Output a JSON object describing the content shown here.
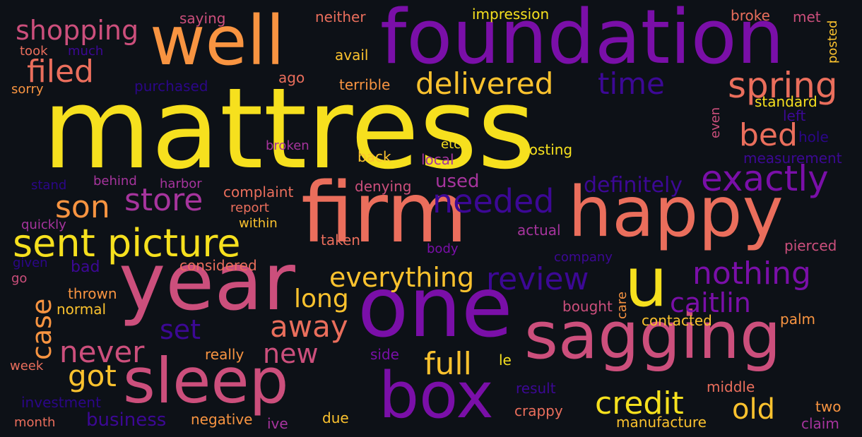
{
  "palette": {
    "background": "#0d1117",
    "yellow": "#f6e01e",
    "gold": "#fbc22e",
    "orange": "#f89441",
    "coral": "#ea6e5c",
    "pink": "#cc4f7c",
    "magenta": "#a6349d",
    "purple": "#7a0fa8",
    "indigo": "#3c0895",
    "dark_indigo": "#2b0688"
  },
  "words": [
    {
      "text": "mattress",
      "color": "#f6e01e"
    },
    {
      "text": "foundation",
      "color": "#7a0fa8"
    },
    {
      "text": "well",
      "color": "#f89441"
    },
    {
      "text": "firm",
      "color": "#ea6e5c"
    },
    {
      "text": "happy",
      "color": "#ea6e5c"
    },
    {
      "text": "year",
      "color": "#cc4f7c"
    },
    {
      "text": "one",
      "color": "#7a0fa8"
    },
    {
      "text": "u",
      "color": "#f6e01e"
    },
    {
      "text": "sagging",
      "color": "#cc4f7c"
    },
    {
      "text": "sleep",
      "color": "#cc4f7c"
    },
    {
      "text": "box",
      "color": "#7a0fa8"
    },
    {
      "text": "sent picture",
      "color": "#f6e01e"
    },
    {
      "text": "shopping",
      "color": "#cc4f7c"
    },
    {
      "text": "filed",
      "color": "#ea6e5c"
    },
    {
      "text": "delivered",
      "color": "#fbc22e"
    },
    {
      "text": "time",
      "color": "#3c0895"
    },
    {
      "text": "spring",
      "color": "#ea6e5c"
    },
    {
      "text": "bed",
      "color": "#ea6e5c"
    },
    {
      "text": "exactly",
      "color": "#7a0fa8"
    },
    {
      "text": "store",
      "color": "#a6349d"
    },
    {
      "text": "son",
      "color": "#f89441"
    },
    {
      "text": "needed",
      "color": "#3c0895"
    },
    {
      "text": "definitely",
      "color": "#3c0895"
    },
    {
      "text": "nothing",
      "color": "#7a0fa8"
    },
    {
      "text": "review",
      "color": "#3c0895"
    },
    {
      "text": "everything",
      "color": "#fbc22e"
    },
    {
      "text": "caitlin",
      "color": "#7a0fa8"
    },
    {
      "text": "case",
      "color": "#f89441"
    },
    {
      "text": "never",
      "color": "#cc4f7c"
    },
    {
      "text": "got",
      "color": "#fbc22e"
    },
    {
      "text": "set",
      "color": "#3c0895"
    },
    {
      "text": "away",
      "color": "#ea6e5c"
    },
    {
      "text": "long",
      "color": "#fbc22e"
    },
    {
      "text": "new",
      "color": "#cc4f7c"
    },
    {
      "text": "full",
      "color": "#fbc22e"
    },
    {
      "text": "credit",
      "color": "#f6e01e"
    },
    {
      "text": "old",
      "color": "#fbc22e"
    },
    {
      "text": "business",
      "color": "#3c0895"
    },
    {
      "text": "bad",
      "color": "#3c0895"
    },
    {
      "text": "used",
      "color": "#a6349d"
    },
    {
      "text": "saying",
      "color": "#cc4f7c"
    },
    {
      "text": "neither",
      "color": "#ea6e5c"
    },
    {
      "text": "impression",
      "color": "#f6e01e"
    },
    {
      "text": "broke",
      "color": "#ea6e5c"
    },
    {
      "text": "met",
      "color": "#cc4f7c"
    },
    {
      "text": "posted",
      "color": "#fbc22e"
    },
    {
      "text": "took",
      "color": "#ea6e5c"
    },
    {
      "text": "much",
      "color": "#3c0895"
    },
    {
      "text": "avail",
      "color": "#fbc22e"
    },
    {
      "text": "sorry",
      "color": "#f89441"
    },
    {
      "text": "purchased",
      "color": "#2b0688"
    },
    {
      "text": "ago",
      "color": "#ea6e5c"
    },
    {
      "text": "terrible",
      "color": "#f89441"
    },
    {
      "text": "standard",
      "color": "#f6e01e"
    },
    {
      "text": "left",
      "color": "#3c0895"
    },
    {
      "text": "even",
      "color": "#cc4f7c"
    },
    {
      "text": "hole",
      "color": "#2b0688"
    },
    {
      "text": "broken",
      "color": "#a6349d"
    },
    {
      "text": "etc",
      "color": "#f6e01e"
    },
    {
      "text": "posting",
      "color": "#f6e01e"
    },
    {
      "text": "back",
      "color": "#fbc22e"
    },
    {
      "text": "local",
      "color": "#a6349d"
    },
    {
      "text": "measurement",
      "color": "#3c0895"
    },
    {
      "text": "stand",
      "color": "#2b0688"
    },
    {
      "text": "behind",
      "color": "#a6349d"
    },
    {
      "text": "harbor",
      "color": "#a6349d"
    },
    {
      "text": "complaint",
      "color": "#ea6e5c"
    },
    {
      "text": "denying",
      "color": "#cc4f7c"
    },
    {
      "text": "report",
      "color": "#ea6e5c"
    },
    {
      "text": "quickly",
      "color": "#a6349d"
    },
    {
      "text": "within",
      "color": "#fbc22e"
    },
    {
      "text": "taken",
      "color": "#ea6e5c"
    },
    {
      "text": "actual",
      "color": "#a6349d"
    },
    {
      "text": "pierced",
      "color": "#cc4f7c"
    },
    {
      "text": "body",
      "color": "#7a0fa8"
    },
    {
      "text": "company",
      "color": "#3c0895"
    },
    {
      "text": "given",
      "color": "#2b0688"
    },
    {
      "text": "considered",
      "color": "#ea6e5c"
    },
    {
      "text": "go",
      "color": "#cc4f7c"
    },
    {
      "text": "thrown",
      "color": "#f89441"
    },
    {
      "text": "normal",
      "color": "#fbc22e"
    },
    {
      "text": "bought",
      "color": "#cc4f7c"
    },
    {
      "text": "care",
      "color": "#f89441"
    },
    {
      "text": "contacted",
      "color": "#fbc22e"
    },
    {
      "text": "palm",
      "color": "#f89441"
    },
    {
      "text": "really",
      "color": "#f89441"
    },
    {
      "text": "side",
      "color": "#7a0fa8"
    },
    {
      "text": "le",
      "color": "#f6e01e"
    },
    {
      "text": "week",
      "color": "#ea6e5c"
    },
    {
      "text": "result",
      "color": "#3c0895"
    },
    {
      "text": "middle",
      "color": "#ea6e5c"
    },
    {
      "text": "investment",
      "color": "#2b0688"
    },
    {
      "text": "crappy",
      "color": "#ea6e5c"
    },
    {
      "text": "two",
      "color": "#f89441"
    },
    {
      "text": "month",
      "color": "#ea6e5c"
    },
    {
      "text": "negative",
      "color": "#f89441"
    },
    {
      "text": "ive",
      "color": "#a6349d"
    },
    {
      "text": "due",
      "color": "#fbc22e"
    },
    {
      "text": "manufacture",
      "color": "#fbc22e"
    },
    {
      "text": "claim",
      "color": "#a6349d"
    }
  ]
}
